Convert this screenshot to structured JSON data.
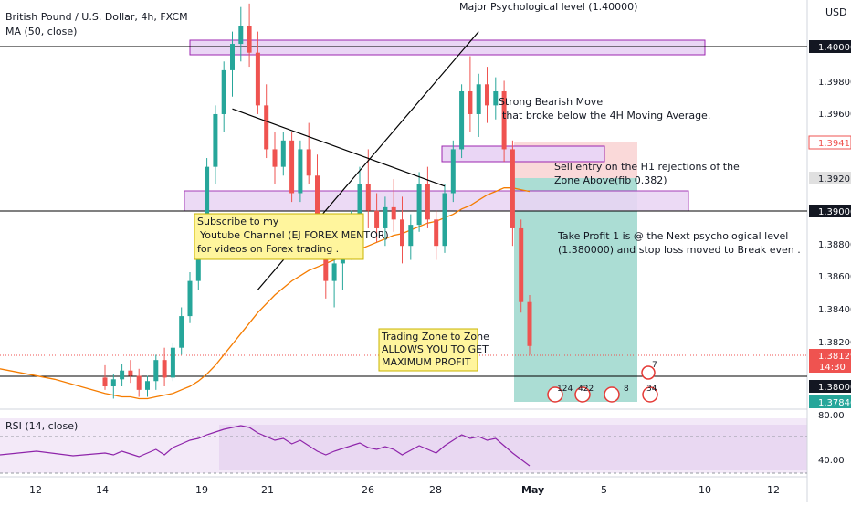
{
  "header": {
    "symbol_title": "British Pound / U.S. Dollar, 4h, FXCM",
    "ma_label": "MA (50, close)",
    "top_annotation": "Major Psychological level (1.40000)"
  },
  "price_axis": {
    "currency": "USD",
    "tick_labels": [
      "1.40000",
      "1.39800",
      "1.39600",
      "1.39416",
      "1.39201",
      "1.39000",
      "1.38800",
      "1.38600",
      "1.38400",
      "1.38200",
      "1.38129",
      "14:30",
      "1.38000",
      "1.37846"
    ],
    "colors": {
      "up": "#26a69a",
      "down": "#ef5350",
      "ma": "#f57c00",
      "rsi": "#8e24aa"
    }
  },
  "time_axis": {
    "labels": [
      "12",
      "14",
      "19",
      "21",
      "26",
      "28",
      "May",
      "5",
      "10",
      "12"
    ]
  },
  "annotations": {
    "bearish_move_line1": "Strong Bearish Move",
    "bearish_move_line2": "that broke below the 4H Moving Average.",
    "sell_entry_line1": "Sell entry on the H1 rejections of the",
    "sell_entry_line2": "Zone Above(fib 0.382)",
    "take_profit_line1": "Take Profit 1 is @ the Next psychological level",
    "take_profit_line2": "(1.380000) and stop loss moved to Break even .",
    "subscribe_line1": "Subscribe to my",
    "subscribe_line2": "Youtube Channel (EJ FOREX MENTOR)",
    "subscribe_line3": "for videos on Forex trading .",
    "zone_line1": "Trading Zone to Zone",
    "zone_line2": "ALLOWS YOU TO GET",
    "zone_line3": "MAXIMUM PROFIT"
  },
  "rsi": {
    "label": "RSI (14, close)",
    "tick_labels": [
      "80.00",
      "40.00"
    ]
  },
  "events": {
    "badge_counts": [
      "7",
      "124",
      "422",
      "8",
      "34"
    ]
  },
  "chart_data": {
    "type": "candlestick",
    "instrument": "British Pound / U.S. Dollar",
    "timeframe": "4h",
    "y_range": [
      1.3777,
      1.401
    ],
    "horizontal_levels": [
      1.4,
      1.39,
      1.38
    ],
    "last_price": 1.38129,
    "stop_price_marker": 1.39416,
    "entry_price_marker": 1.39201,
    "target_price_marker": 1.37846,
    "candles": [
      [
        1.3795,
        1.3802,
        1.3788,
        1.379
      ],
      [
        1.379,
        1.3797,
        1.3783,
        1.3794
      ],
      [
        1.3794,
        1.3803,
        1.379,
        1.3799
      ],
      [
        1.3799,
        1.3805,
        1.3792,
        1.3796
      ],
      [
        1.3796,
        1.38,
        1.3784,
        1.3788
      ],
      [
        1.3788,
        1.3796,
        1.3784,
        1.3793
      ],
      [
        1.3793,
        1.3808,
        1.3788,
        1.3805
      ],
      [
        1.3805,
        1.3812,
        1.379,
        1.3795
      ],
      [
        1.3795,
        1.3815,
        1.3793,
        1.3812
      ],
      [
        1.3812,
        1.3835,
        1.3808,
        1.383
      ],
      [
        1.383,
        1.3855,
        1.3826,
        1.385
      ],
      [
        1.385,
        1.388,
        1.3845,
        1.3875
      ],
      [
        1.3875,
        1.392,
        1.387,
        1.3915
      ],
      [
        1.3915,
        1.395,
        1.3905,
        1.3945
      ],
      [
        1.3945,
        1.3975,
        1.3935,
        1.397
      ],
      [
        1.397,
        1.3992,
        1.3955,
        1.3985
      ],
      [
        1.3985,
        1.4006,
        1.3975,
        1.3995
      ],
      [
        1.3995,
        1.4008,
        1.3972,
        1.398
      ],
      [
        1.398,
        1.3992,
        1.3945,
        1.395
      ],
      [
        1.395,
        1.3962,
        1.392,
        1.3925
      ],
      [
        1.3925,
        1.3935,
        1.3905,
        1.3915
      ],
      [
        1.3915,
        1.3935,
        1.391,
        1.393
      ],
      [
        1.393,
        1.3935,
        1.3895,
        1.39
      ],
      [
        1.39,
        1.393,
        1.3895,
        1.3925
      ],
      [
        1.3925,
        1.394,
        1.3905,
        1.391
      ],
      [
        1.391,
        1.3922,
        1.387,
        1.3875
      ],
      [
        1.3875,
        1.3885,
        1.384,
        1.385
      ],
      [
        1.385,
        1.387,
        1.3835,
        1.386
      ],
      [
        1.386,
        1.3878,
        1.3845,
        1.387
      ],
      [
        1.387,
        1.389,
        1.3862,
        1.3885
      ],
      [
        1.3885,
        1.3915,
        1.3878,
        1.3905
      ],
      [
        1.3905,
        1.3925,
        1.388,
        1.389
      ],
      [
        1.389,
        1.39,
        1.3872,
        1.388
      ],
      [
        1.388,
        1.3898,
        1.387,
        1.3892
      ],
      [
        1.3892,
        1.3908,
        1.3878,
        1.3885
      ],
      [
        1.3885,
        1.3898,
        1.386,
        1.387
      ],
      [
        1.387,
        1.3888,
        1.3862,
        1.3882
      ],
      [
        1.3882,
        1.3912,
        1.3878,
        1.3905
      ],
      [
        1.3905,
        1.3915,
        1.388,
        1.3885
      ],
      [
        1.3885,
        1.389,
        1.3862,
        1.387
      ],
      [
        1.387,
        1.3905,
        1.3866,
        1.39
      ],
      [
        1.39,
        1.393,
        1.3895,
        1.3925
      ],
      [
        1.3925,
        1.3962,
        1.392,
        1.3958
      ],
      [
        1.3958,
        1.3978,
        1.3935,
        1.3945
      ],
      [
        1.3945,
        1.3968,
        1.3932,
        1.3962
      ],
      [
        1.3962,
        1.3972,
        1.394,
        1.395
      ],
      [
        1.395,
        1.3966,
        1.3942,
        1.3958
      ],
      [
        1.3958,
        1.3964,
        1.3918,
        1.3925
      ],
      [
        1.3925,
        1.393,
        1.387,
        1.388
      ],
      [
        1.388,
        1.3885,
        1.3832,
        1.3838
      ],
      [
        1.3838,
        1.3842,
        1.3808,
        1.3813
      ]
    ],
    "ma50": [
      1.3786,
      1.3785,
      1.3784,
      1.3784,
      1.3783,
      1.3783,
      1.3784,
      1.3785,
      1.3786,
      1.3788,
      1.379,
      1.3793,
      1.3797,
      1.3802,
      1.3808,
      1.3814,
      1.382,
      1.3826,
      1.3832,
      1.3837,
      1.3842,
      1.3846,
      1.385,
      1.3853,
      1.3856,
      1.3858,
      1.386,
      1.3862,
      1.3864,
      1.3866,
      1.3868,
      1.387,
      1.3872,
      1.3874,
      1.3876,
      1.3877,
      1.3879,
      1.3881,
      1.3883,
      1.3884,
      1.3886,
      1.3888,
      1.3891,
      1.3893,
      1.3896,
      1.3899,
      1.3901,
      1.3903,
      1.3903,
      1.3902,
      1.3901
    ],
    "rsi_range": [
      30,
      90
    ],
    "rsi_levels": [
      70,
      30
    ],
    "rsi_values": [
      52,
      50,
      54,
      51,
      48,
      52,
      56,
      50,
      58,
      62,
      66,
      68,
      72,
      75,
      78,
      80,
      82,
      80,
      74,
      70,
      66,
      68,
      62,
      66,
      60,
      54,
      50,
      54,
      57,
      60,
      63,
      58,
      56,
      59,
      56,
      50,
      55,
      60,
      56,
      52,
      60,
      66,
      72,
      68,
      70,
      66,
      68,
      60,
      52,
      45,
      38
    ],
    "trend_lines": [
      {
        "from": [
          18,
          1.3845
        ],
        "to": [
          44,
          1.3992
        ]
      },
      {
        "from": [
          15,
          1.3948
        ],
        "to": [
          40,
          1.3904
        ]
      }
    ]
  }
}
